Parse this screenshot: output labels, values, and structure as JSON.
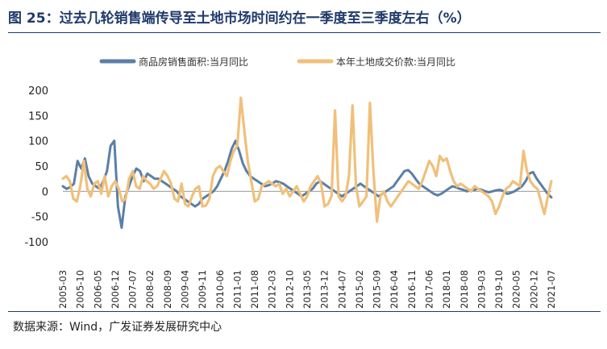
{
  "title": "图 25：过去几轮销售端传导至土地市场时间约在一季度至三季度左右（%）",
  "source": "数据来源：Wind，广发证券发展研究中心",
  "chart_data": {
    "type": "line",
    "title": "图 25：过去几轮销售端传导至土地市场时间约在一季度至三季度左右（%）",
    "xlabel": "",
    "ylabel": "",
    "ylim": [
      -100,
      200
    ],
    "yticks": [
      "-100",
      "-50",
      "0",
      "50",
      "100",
      "150",
      "200"
    ],
    "xticks": [
      "2005-03",
      "2005-10",
      "2006-05",
      "2006-12",
      "2007-07",
      "2008-02",
      "2008-09",
      "2009-04",
      "2009-11",
      "2010-06",
      "2011-01",
      "2011-08",
      "2012-03",
      "2012-10",
      "2013-05",
      "2013-12",
      "2014-07",
      "2015-02",
      "2015-09",
      "2016-04",
      "2016-11",
      "2017-06",
      "2018-01",
      "2018-08",
      "2019-03",
      "2019-10",
      "2020-05",
      "2020-12",
      "2021-07"
    ],
    "grid": false,
    "legend_position": "top",
    "series": [
      {
        "name": "商品房销售面积:当月同比",
        "color": "#5b7fa6",
        "values": [
          10,
          5,
          8,
          15,
          60,
          45,
          65,
          30,
          15,
          10,
          5,
          20,
          40,
          90,
          100,
          -30,
          -72,
          -10,
          10,
          30,
          45,
          40,
          20,
          35,
          30,
          25,
          25,
          20,
          15,
          10,
          5,
          0,
          -10,
          -15,
          -20,
          -25,
          -30,
          -25,
          -15,
          -10,
          -5,
          0,
          10,
          25,
          40,
          60,
          85,
          100,
          80,
          55,
          40,
          30,
          25,
          20,
          15,
          10,
          12,
          15,
          20,
          18,
          15,
          10,
          5,
          0,
          -5,
          -10,
          -5,
          0,
          5,
          15,
          20,
          15,
          10,
          5,
          0,
          -5,
          -10,
          -5,
          0,
          5,
          10,
          15,
          10,
          5,
          0,
          -5,
          -10,
          -5,
          0,
          5,
          10,
          20,
          30,
          40,
          42,
          35,
          25,
          15,
          10,
          5,
          0,
          -5,
          -8,
          -5,
          0,
          5,
          10,
          8,
          5,
          3,
          0,
          2,
          3,
          5,
          3,
          0,
          -2,
          0,
          2,
          3,
          0,
          -5,
          -3,
          0,
          5,
          10,
          20,
          35,
          38,
          25,
          15,
          5,
          -5,
          -12
        ]
      },
      {
        "name": "本年土地成交价款:当月同比",
        "color": "#f0c07a",
        "values": [
          25,
          30,
          20,
          -15,
          -20,
          10,
          60,
          5,
          -10,
          15,
          20,
          -5,
          30,
          -10,
          10,
          20,
          5,
          -20,
          -15,
          25,
          40,
          10,
          5,
          30,
          20,
          15,
          5,
          10,
          25,
          40,
          30,
          15,
          -15,
          -20,
          15,
          -25,
          -30,
          -10,
          5,
          10,
          -30,
          -28,
          -15,
          30,
          45,
          50,
          40,
          30,
          60,
          80,
          90,
          185,
          120,
          60,
          20,
          -20,
          -15,
          10,
          15,
          20,
          15,
          10,
          15,
          -5,
          5,
          -10,
          0,
          10,
          -5,
          -20,
          -10,
          10,
          20,
          30,
          15,
          -30,
          -25,
          -10,
          160,
          -10,
          -20,
          -10,
          30,
          170,
          10,
          -30,
          -20,
          -10,
          175,
          40,
          -60,
          -10,
          0,
          -20,
          -30,
          -20,
          -10,
          0,
          10,
          20,
          15,
          10,
          5,
          20,
          40,
          60,
          50,
          30,
          70,
          60,
          65,
          40,
          20,
          10,
          15,
          10,
          5,
          0,
          10,
          5,
          0,
          -5,
          -10,
          -20,
          -45,
          -30,
          -10,
          5,
          10,
          20,
          15,
          10,
          80,
          40,
          20,
          10,
          5,
          -20,
          -45,
          -10,
          20
        ]
      }
    ]
  }
}
